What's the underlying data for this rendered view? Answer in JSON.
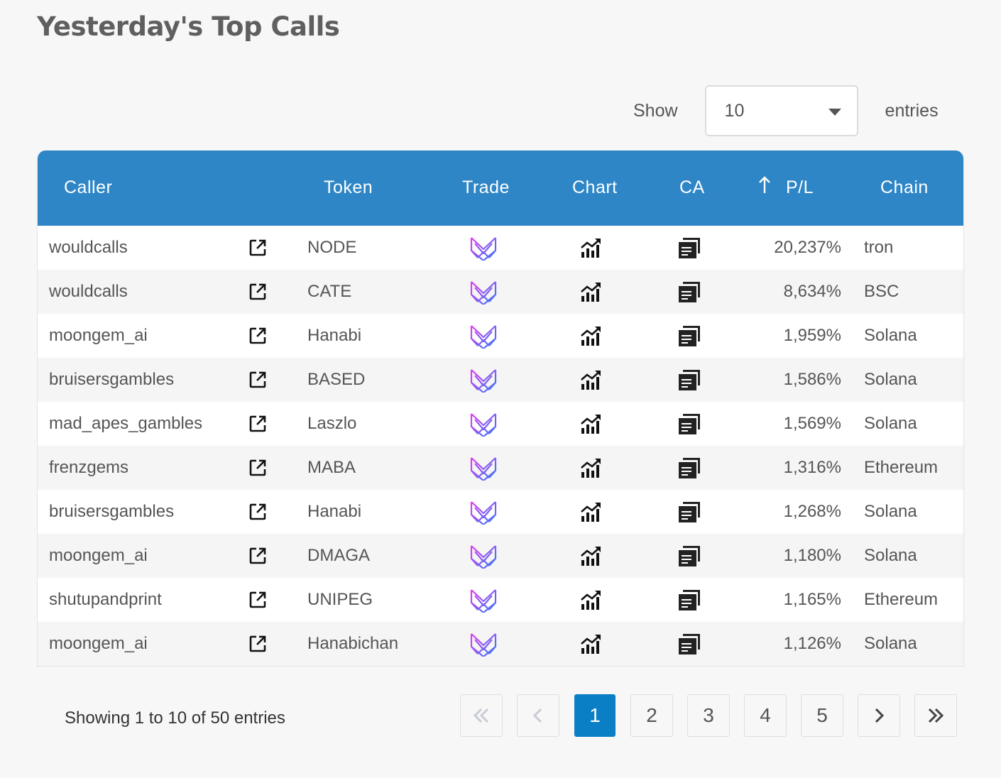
{
  "title": "Yesterday's Top Calls",
  "length": {
    "show_label": "Show",
    "value": "10",
    "entries_label": "entries"
  },
  "columns": {
    "caller": "Caller",
    "token": "Token",
    "trade": "Trade",
    "chart": "Chart",
    "ca": "CA",
    "pl": "P/L",
    "chain": "Chain"
  },
  "sort": {
    "column": "pl",
    "direction": "desc"
  },
  "colors": {
    "header": "#2e86c7",
    "active_page": "#0a7fc5",
    "trade_icon_gradient": [
      "#e33cf0",
      "#2f7cf6"
    ]
  },
  "icons": {
    "link": "external-link-icon",
    "trade": "trade-logo-icon",
    "chart": "chart-growth-icon",
    "ca": "copy-icon",
    "sort": "sort-arrow-up-icon"
  },
  "rows": [
    {
      "caller": "wouldcalls",
      "token": "NODE",
      "pl": "20,237%",
      "chain": "tron"
    },
    {
      "caller": "wouldcalls",
      "token": "CATE",
      "pl": "8,634%",
      "chain": "BSC"
    },
    {
      "caller": "moongem_ai",
      "token": "Hanabi",
      "pl": "1,959%",
      "chain": "Solana"
    },
    {
      "caller": "bruisersgambles",
      "token": "BASED",
      "pl": "1,586%",
      "chain": "Solana"
    },
    {
      "caller": "mad_apes_gambles",
      "token": "Laszlo",
      "pl": "1,569%",
      "chain": "Solana"
    },
    {
      "caller": "frenzgems",
      "token": "MABA",
      "pl": "1,316%",
      "chain": "Ethereum"
    },
    {
      "caller": "bruisersgambles",
      "token": "Hanabi",
      "pl": "1,268%",
      "chain": "Solana"
    },
    {
      "caller": "moongem_ai",
      "token": "DMAGA",
      "pl": "1,180%",
      "chain": "Solana"
    },
    {
      "caller": "shutupandprint",
      "token": "UNIPEG",
      "pl": "1,165%",
      "chain": "Ethereum"
    },
    {
      "caller": "moongem_ai",
      "token": "Hanabichan",
      "pl": "1,126%",
      "chain": "Solana"
    }
  ],
  "info": "Showing 1 to 10 of 50 entries",
  "pagination": {
    "first": "«",
    "prev": "‹",
    "pages": [
      "1",
      "2",
      "3",
      "4",
      "5"
    ],
    "current": "1",
    "next": "›",
    "last": "»"
  }
}
